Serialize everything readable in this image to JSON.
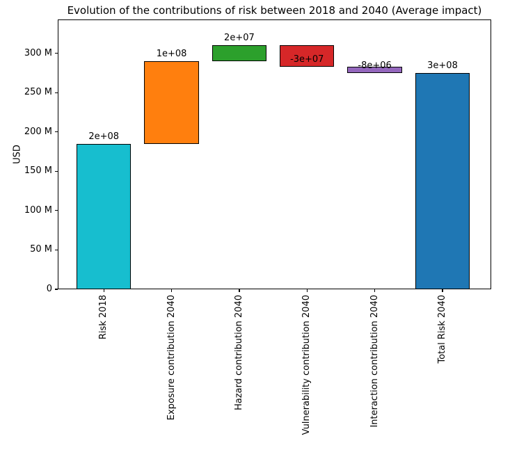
{
  "title": "Evolution of the contributions of risk between 2018 and 2040 (Average impact)",
  "chart_data": {
    "type": "bar",
    "subtype": "waterfall",
    "title": "Evolution of the contributions of risk between 2018 and 2040 (Average impact)",
    "xlabel": "",
    "ylabel": "USD",
    "units": "millions of USD",
    "grid": false,
    "legend": false,
    "x_tick_rotation": 90,
    "ylim": [
      0,
      343
    ],
    "categories": [
      "Risk 2018",
      "Exposure contribution 2040",
      "Hazard contribution 2040",
      "Vulnerability contribution 2040",
      "Interaction contribution 2040",
      "Total Risk 2040"
    ],
    "bars": [
      {
        "category": "Risk 2018",
        "role": "total",
        "start_m": 0,
        "end_m": 184.6,
        "change_m": 184.6,
        "label": "2e+08",
        "color": "#17becf"
      },
      {
        "category": "Exposure contribution 2040",
        "role": "increase",
        "start_m": 184.6,
        "end_m": 290.1,
        "change_m": 105.5,
        "label": "1e+08",
        "color": "#ff7f0e"
      },
      {
        "category": "Hazard contribution 2040",
        "role": "increase",
        "start_m": 290.1,
        "end_m": 310.2,
        "change_m": 20.1,
        "label": "2e+07",
        "color": "#2ca02c"
      },
      {
        "category": "Vulnerability contribution 2040",
        "role": "decrease",
        "start_m": 310.2,
        "end_m": 282.8,
        "change_m": -27.4,
        "label": "-3e+07",
        "color": "#d62728"
      },
      {
        "category": "Interaction contribution 2040",
        "role": "decrease",
        "start_m": 282.8,
        "end_m": 275.3,
        "change_m": -7.5,
        "label": "-8e+06",
        "color": "#9467bd"
      },
      {
        "category": "Total Risk 2040",
        "role": "total",
        "start_m": 0,
        "end_m": 275.3,
        "change_m": 275.3,
        "label": "3e+08",
        "color": "#1f77b4"
      }
    ],
    "y_ticks": [
      {
        "value": 0,
        "label": "0"
      },
      {
        "value": 50,
        "label": "50 M"
      },
      {
        "value": 100,
        "label": "100 M"
      },
      {
        "value": 150,
        "label": "150 M"
      },
      {
        "value": 200,
        "label": "200 M"
      },
      {
        "value": 250,
        "label": "250 M"
      },
      {
        "value": 300,
        "label": "300 M"
      }
    ],
    "colors": {
      "bar_edge": "#000000",
      "axis": "#000000",
      "text": "#000000",
      "background": "#ffffff"
    }
  }
}
